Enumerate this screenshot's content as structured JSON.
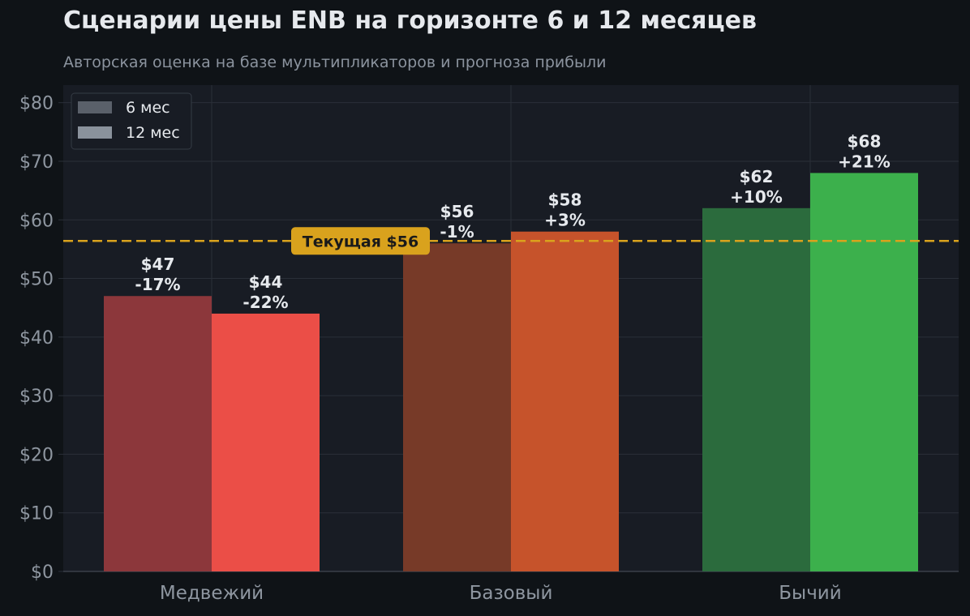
{
  "title": "Сценарии цены ENB на горизонте 6 и 12 месяцев",
  "subtitle": "Авторская оценка на базе мультипликаторов и прогноза прибыли",
  "colors": {
    "background": "#0f1317",
    "plot_background": "#181c24",
    "grid": "#2a2f38",
    "reference_line": "#d9a21d",
    "bear_6": "#8c373b",
    "bear_12": "#eb4e47",
    "base_6": "#773a28",
    "base_12": "#c6532b",
    "bull_6": "#2b6b3d",
    "bull_12": "#3cb04c",
    "legend_6": "#5a606a",
    "legend_12": "#8a929c"
  },
  "chart_data": {
    "type": "bar",
    "categories": [
      "Медвежий",
      "Базовый",
      "Бычий"
    ],
    "series": [
      {
        "name": "6 мес",
        "values": [
          47,
          56,
          62
        ],
        "labels": [
          "$47\n-17%",
          "$56\n-1%",
          "$62\n+10%"
        ]
      },
      {
        "name": "12 мес",
        "values": [
          44,
          58,
          68
        ],
        "labels": [
          "$44\n-22%",
          "$58\n+3%",
          "$68\n+21%"
        ]
      }
    ],
    "ylim": [
      0,
      83
    ],
    "yticks": [
      0,
      10,
      20,
      30,
      40,
      50,
      60,
      70,
      80
    ],
    "ytick_labels": [
      "$0",
      "$10",
      "$20",
      "$30",
      "$40",
      "$50",
      "$60",
      "$70",
      "$80"
    ],
    "reference_line": {
      "value": 56.4,
      "label": "Текущая $56"
    },
    "legend_position": "top-left",
    "grid": true
  }
}
